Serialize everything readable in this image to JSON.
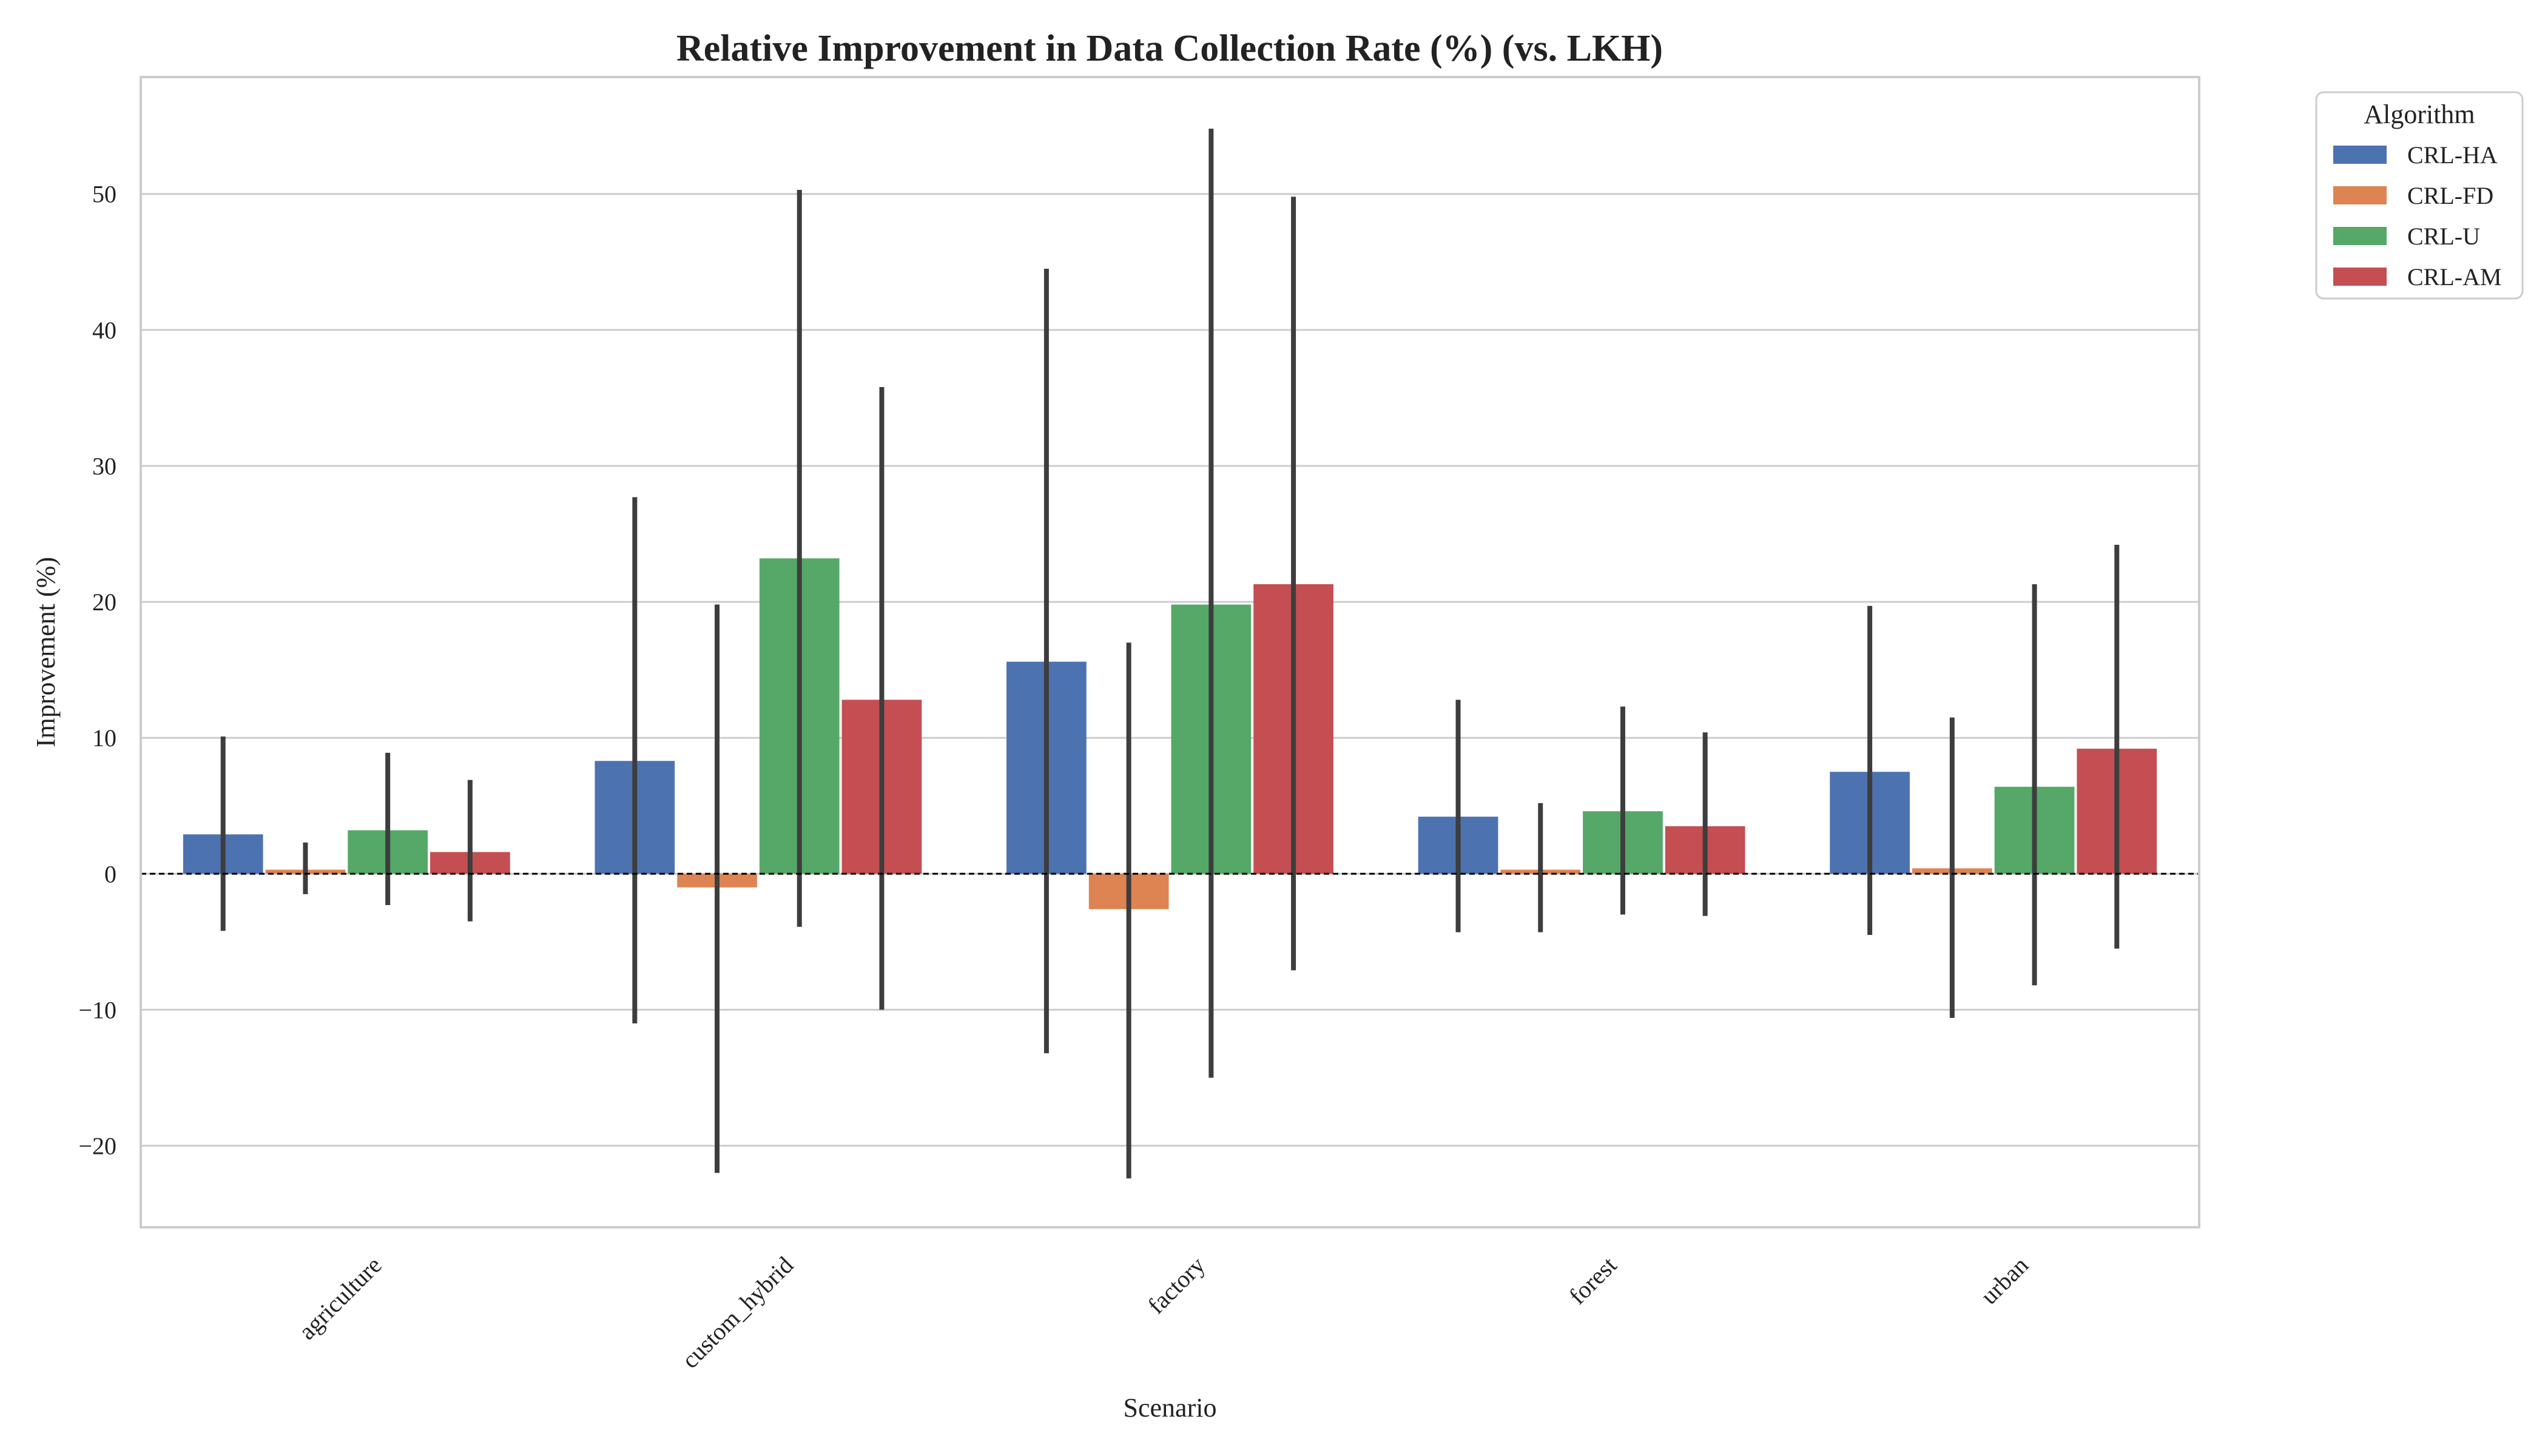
{
  "chart_data": {
    "type": "bar",
    "title": "Relative Improvement in Data Collection Rate (%) (vs. LKH)",
    "xlabel": "Scenario",
    "ylabel": "Improvement (%)",
    "ylim": [
      -26,
      58.6
    ],
    "yticks": [
      -20,
      -10,
      0,
      10,
      20,
      30,
      40,
      50
    ],
    "categories": [
      "agriculture",
      "custom_hybrid",
      "factory",
      "forest",
      "urban"
    ],
    "series": [
      {
        "name": "CRL-HA",
        "color": "#4c72b0",
        "values": [
          2.9,
          8.3,
          15.6,
          4.2,
          7.5
        ],
        "err_low": [
          -4.2,
          -11.0,
          -13.2,
          -4.3,
          -4.5
        ],
        "err_high": [
          10.1,
          27.7,
          44.5,
          12.8,
          19.7
        ]
      },
      {
        "name": "CRL-FD",
        "color": "#dd8452",
        "values": [
          0.3,
          -1.0,
          -2.6,
          0.3,
          0.4
        ],
        "err_low": [
          -1.5,
          -22.0,
          -22.4,
          -4.3,
          -10.6
        ],
        "err_high": [
          2.3,
          19.8,
          17.0,
          5.2,
          11.5
        ]
      },
      {
        "name": "CRL-U",
        "color": "#55a868",
        "values": [
          3.2,
          23.2,
          19.8,
          4.6,
          6.4
        ],
        "err_low": [
          -2.3,
          -3.9,
          -15.0,
          -3.0,
          -8.2
        ],
        "err_high": [
          8.9,
          50.3,
          54.8,
          12.3,
          21.3
        ]
      },
      {
        "name": "CRL-AM",
        "color": "#c44e52",
        "values": [
          1.6,
          12.8,
          21.3,
          3.5,
          9.2
        ],
        "err_low": [
          -3.5,
          -10.0,
          -7.1,
          -3.1,
          -5.5
        ],
        "err_high": [
          6.9,
          35.8,
          49.8,
          10.4,
          24.2
        ]
      }
    ],
    "legend": {
      "title": "Algorithm",
      "placement": "outside-top-right"
    },
    "grid": "y-major",
    "reference_line": {
      "y": 0,
      "style": "dashed",
      "color": "#000000"
    }
  }
}
